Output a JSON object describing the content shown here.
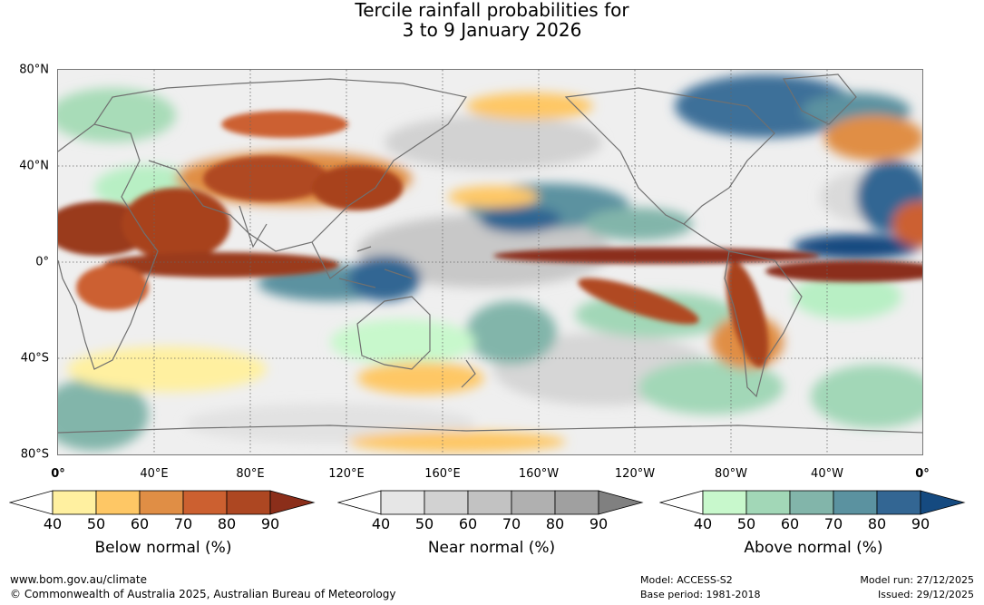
{
  "title": {
    "line1": "Tercile rainfall probabilities for",
    "line2": "3 to 9 January 2026"
  },
  "axes": {
    "lat_labels": [
      "80°N",
      "40°N",
      "0°",
      "40°S",
      "80°S"
    ],
    "lon_labels": [
      "0°",
      "40°E",
      "80°E",
      "120°E",
      "160°E",
      "160°W",
      "120°W",
      "80°W",
      "40°W",
      "0°"
    ]
  },
  "legends": [
    {
      "id": "below",
      "title": "Below normal (%)",
      "ticks": [
        "40",
        "50",
        "60",
        "70",
        "80",
        "90"
      ],
      "colors": [
        "#ffffff",
        "#fff0a0",
        "#fec765",
        "#e08e45",
        "#cc6030",
        "#ad4722",
        "#8b2e1a"
      ]
    },
    {
      "id": "near",
      "title": "Near normal (%)",
      "ticks": [
        "40",
        "50",
        "60",
        "70",
        "80",
        "90"
      ],
      "colors": [
        "#ffffff",
        "#e6e6e6",
        "#d2d2d2",
        "#c2c2c2",
        "#b0b0b0",
        "#a0a0a0",
        "#808080"
      ]
    },
    {
      "id": "above",
      "title": "Above normal (%)",
      "ticks": [
        "40",
        "50",
        "60",
        "70",
        "80",
        "90"
      ],
      "colors": [
        "#ffffff",
        "#c8f8cc",
        "#a2d7b7",
        "#82b5aa",
        "#5b92a0",
        "#336693",
        "#154a80"
      ]
    }
  ],
  "footer": {
    "url": "www.bom.gov.au/climate",
    "copyright": "© Commonwealth of Australia 2025, Australian Bureau of Meteorology",
    "model": "Model: ACCESS-S2",
    "base_period": "Base period: 1981-2018",
    "model_run": "Model run: 27/12/2025",
    "issued": "Issued: 29/12/2025"
  }
}
